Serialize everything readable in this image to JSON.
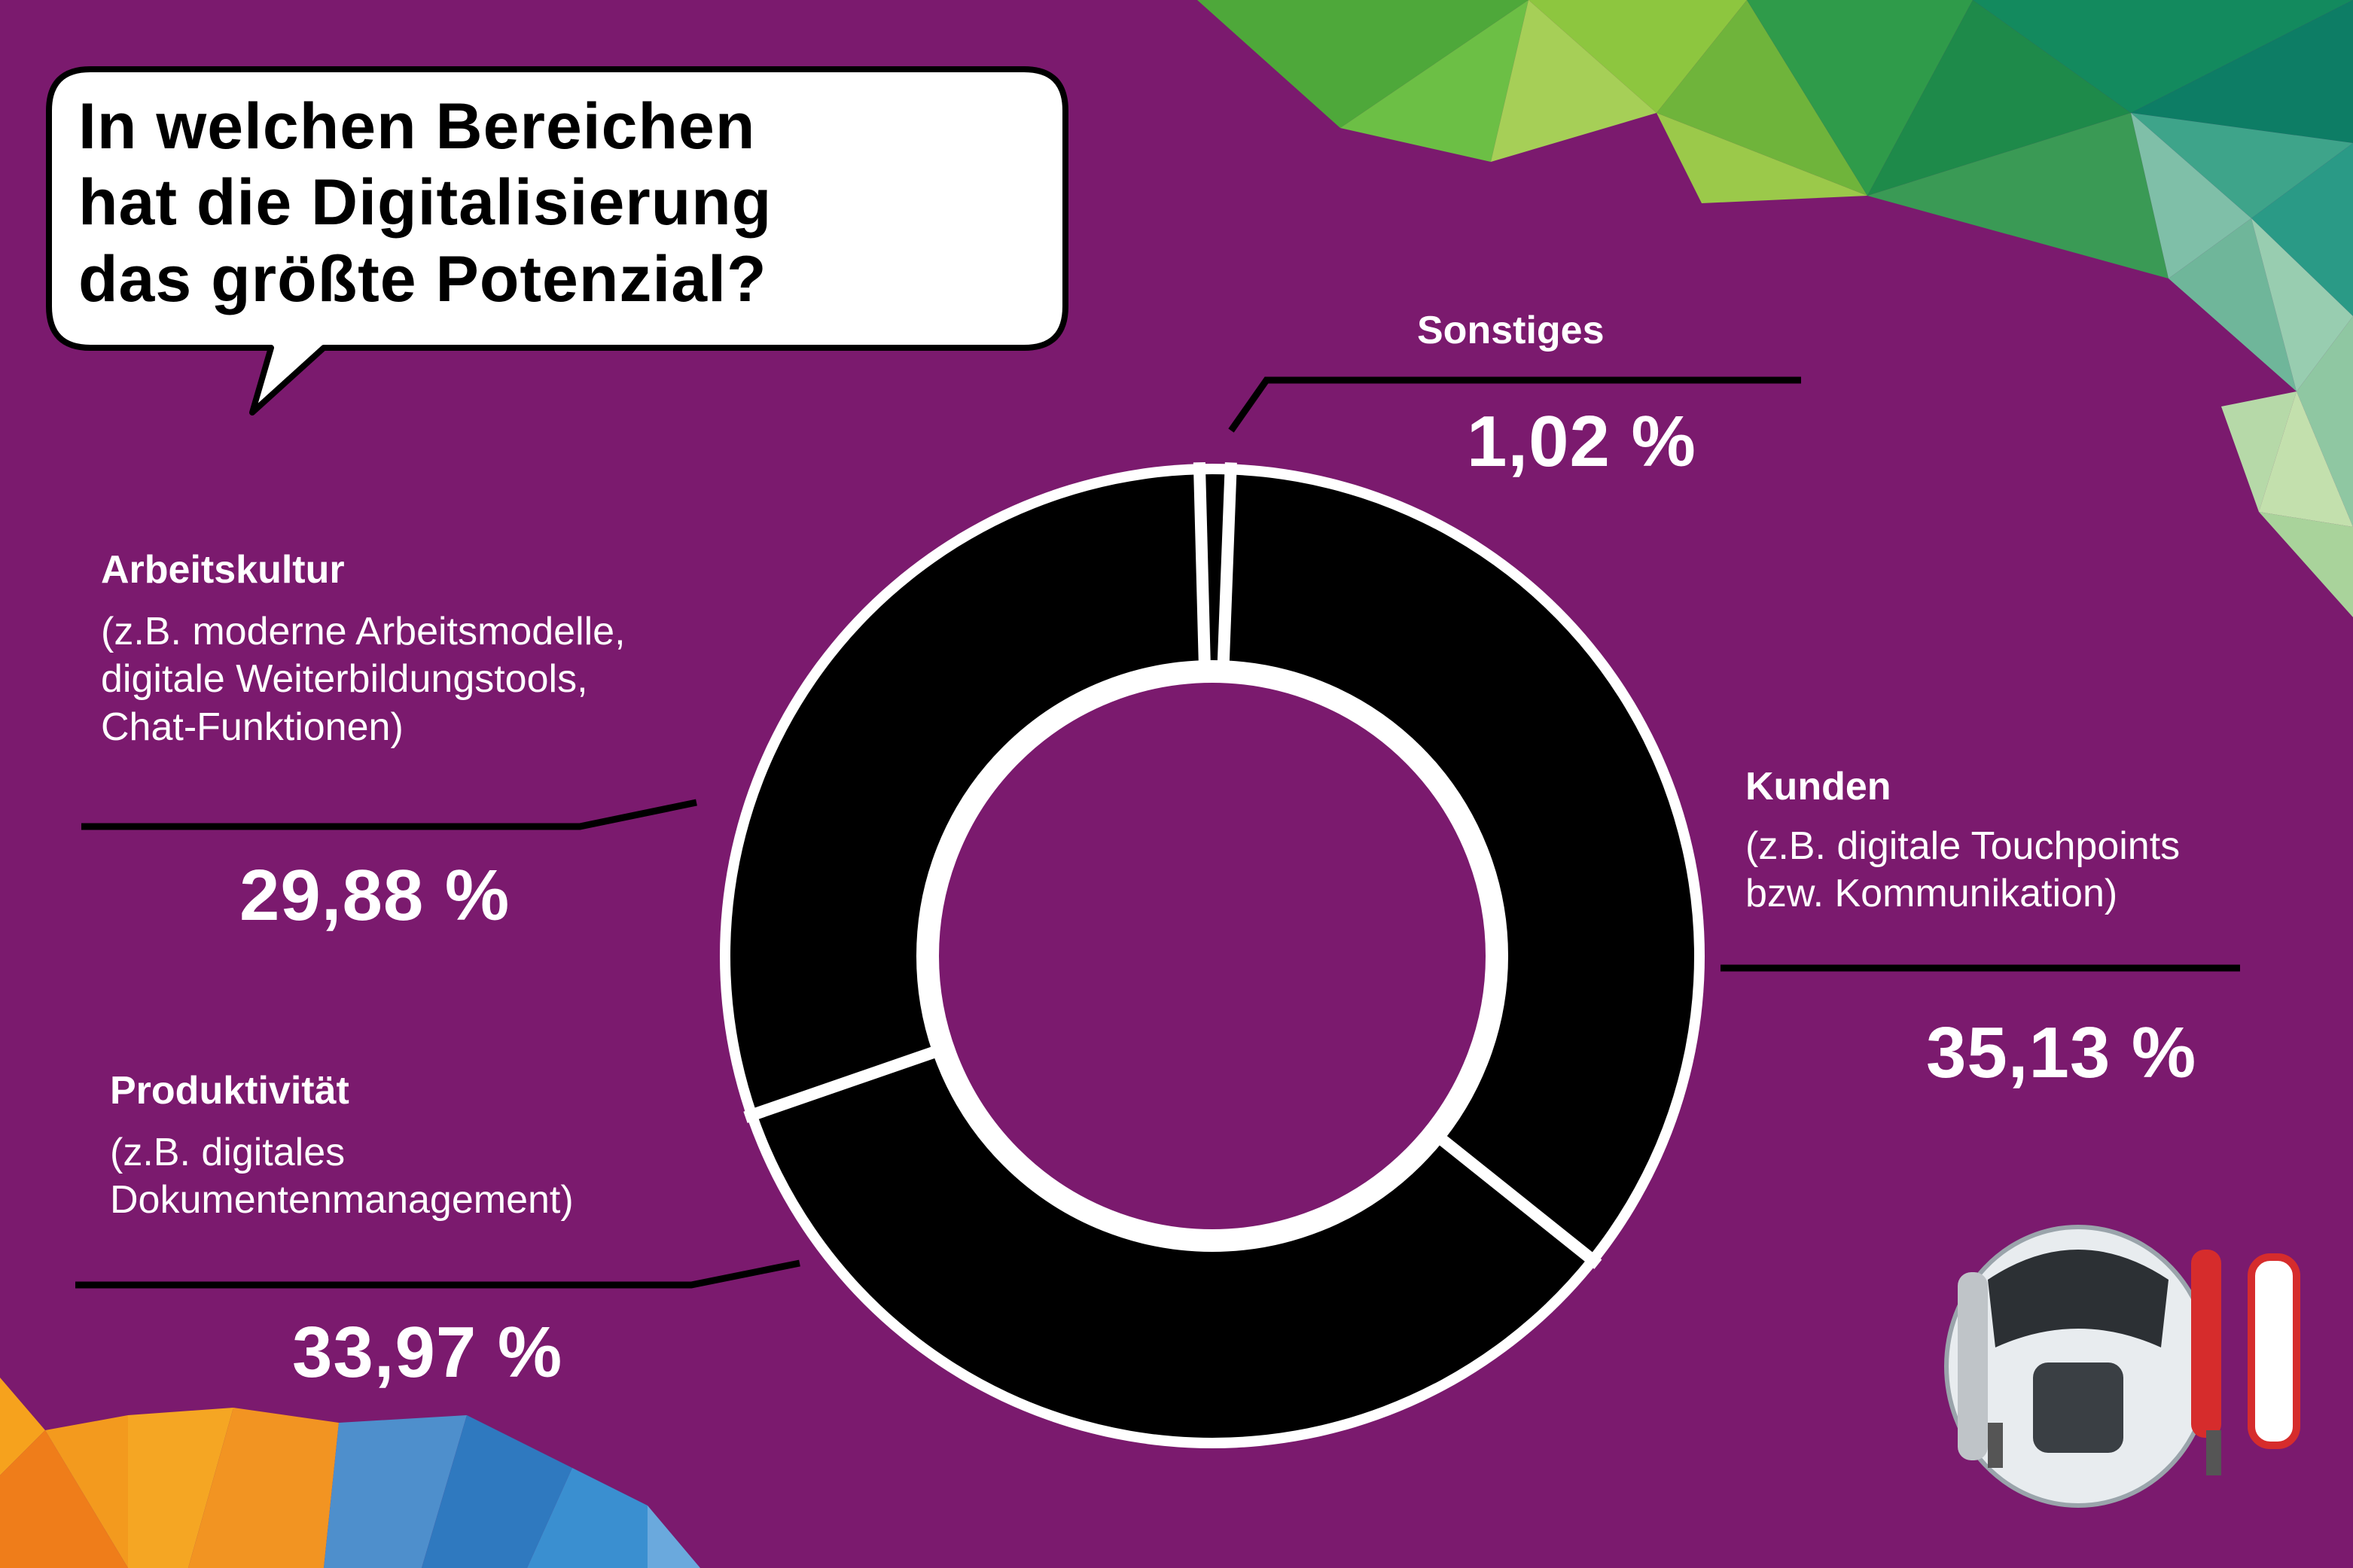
{
  "colors": {
    "background": "#7b1a6e",
    "ring": "#000000",
    "separator": "#ffffff",
    "text": "#ffffff",
    "bubble": "#ffffff"
  },
  "title": "In welchen Bereichen\nhat die Digitalisierung\ndas größte Potenzial?",
  "decorations": [
    "speech-bubble",
    "green-polygon-pattern",
    "orange-blue-polygon-pattern",
    "robot-image"
  ],
  "chart_data": {
    "type": "pie",
    "variant": "donut",
    "unit": "%",
    "title": "In welchen Bereichen hat die Digitalisierung das größte Potenzial?",
    "slices": [
      {
        "label": "Sonstiges",
        "description": "",
        "value": 1.02,
        "value_label": "1,02 %"
      },
      {
        "label": "Kunden",
        "description": "(z.B. digitale Touchpoints\nbzw. Kommunikation)",
        "value": 35.13,
        "value_label": "35,13 %"
      },
      {
        "label": "Produktivität",
        "description": "(z.B. digitales\nDokumentenmanagement)",
        "value": 33.97,
        "value_label": "33,97 %"
      },
      {
        "label": "Arbeitskultur",
        "description": "(z.B. moderne Arbeitsmodelle,\ndigitale Weiterbildungstools,\nChat-Funktionen)",
        "value": 29.88,
        "value_label": "29,88 %"
      }
    ]
  }
}
